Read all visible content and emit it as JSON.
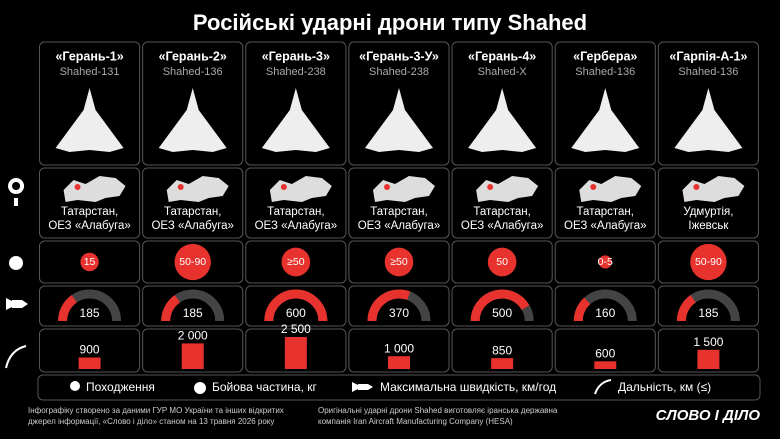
{
  "header": {
    "title": "Російські ударні дрони типу Shahed"
  },
  "drones": [
    {
      "name": "«Герань-1»",
      "model": "Shahed-131",
      "origin": [
        "Татарстан,",
        "ОЕЗ «Алабуга»"
      ],
      "warhead": {
        "value": 15,
        "label": "15"
      },
      "speed": 185,
      "range": 900
    },
    {
      "name": "«Герань-2»",
      "model": "Shahed-136",
      "origin": [
        "Татарстан,",
        "ОЕЗ «Алабуга»"
      ],
      "warhead": {
        "value": 90,
        "label": "50-90"
      },
      "speed": 185,
      "range": {
        "value": 2000,
        "label": "2 000"
      }
    },
    {
      "name": "«Герань-3»",
      "model": "Shahed-238",
      "origin": [
        "Татарстан,",
        "ОЕЗ «Алабуга»"
      ],
      "warhead": {
        "value": 50,
        "label": "≥50"
      },
      "speed": 600,
      "range": {
        "value": 2500,
        "label": "2 500"
      }
    },
    {
      "name": "«Герань-3-У»",
      "model": "Shahed-238",
      "origin": [
        "Татарстан,",
        "ОЕЗ «Алабуга»"
      ],
      "warhead": {
        "value": 50,
        "label": "≥50"
      },
      "speed": 370,
      "range": {
        "value": 1000,
        "label": "1 000"
      }
    },
    {
      "name": "«Герань-4»",
      "model": "Shahed-X",
      "origin": [
        "Татарстан,",
        "ОЕЗ «Алабуга»"
      ],
      "warhead": {
        "value": 50,
        "label": "50"
      },
      "speed": 500,
      "range": 850
    },
    {
      "name": "«Гербера»",
      "model": "Shahed-136",
      "origin": [
        "Татарстан,",
        "ОЕЗ «Алабуга»"
      ],
      "warhead": {
        "value": 5,
        "label": "0-5"
      },
      "speed": 160,
      "range": 600
    },
    {
      "name": "«Гарпія-А-1»",
      "model": "Shahed-136",
      "origin": [
        "Удмуртія,",
        "Іжевськ"
      ],
      "warhead": {
        "value": 90,
        "label": "50-90"
      },
      "speed": 185,
      "range": {
        "value": 1500,
        "label": "1 500"
      }
    }
  ],
  "legend": [
    "Походження",
    "Бойова частина, кг",
    "Максимальна швидкість, км/год",
    "Дальність, км (≤)"
  ],
  "footer": {
    "left": [
      "Інфографіку створено за даними ГУР МО України та інших відкритих",
      "джерел інформації, «Слово і діло» станом на 13 травня 2026 року"
    ],
    "right": [
      "Оригінальні ударні дрони Shahed виготовляє іранська державна",
      "компанія Iran Aircraft Manufacturing Company (HESA)"
    ],
    "logo": "СЛОВО І ДІЛО"
  }
}
